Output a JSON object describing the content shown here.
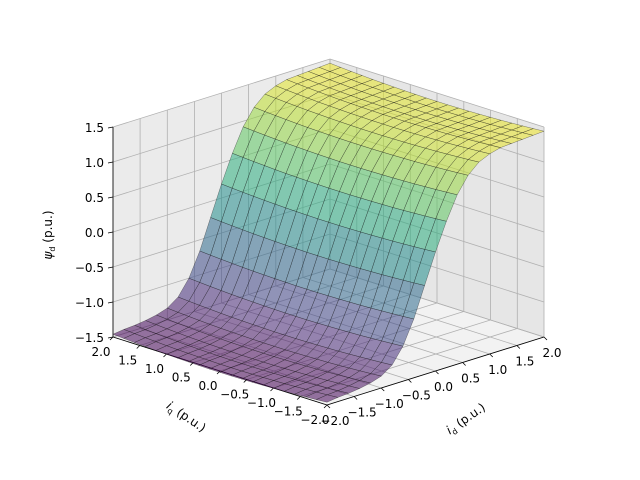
{
  "chart_data": {
    "type": "surface",
    "title": "",
    "xlabel": "i_d (p.u.)",
    "ylabel": "i_q (p.u.)",
    "zlabel": "ψ_d (p.u.)",
    "labels": {
      "x": {
        "sym": "i",
        "sub": "d",
        "unit": " (p.u.)"
      },
      "y": {
        "sym": "i",
        "sub": "q",
        "unit": " (p.u.)"
      },
      "z": {
        "sym": "ψ",
        "sub": "d",
        "unit": " (p.u.)"
      }
    },
    "xlim": [
      -2.0,
      2.0
    ],
    "ylim": [
      -2.0,
      2.0
    ],
    "zlim": [
      -1.5,
      1.5
    ],
    "x_ticks": [
      "−2.0",
      "−1.5",
      "−1.0",
      "−0.5",
      "0.0",
      "0.5",
      "1.0",
      "1.5",
      "2.0"
    ],
    "y_ticks": [
      "−2.0",
      "−1.5",
      "−1.0",
      "−0.5",
      "0.0",
      "0.5",
      "1.0",
      "1.5",
      "2.0"
    ],
    "z_ticks": [
      "−1.5",
      "−1.0",
      "−0.5",
      "0.0",
      "0.5",
      "1.0",
      "1.5"
    ],
    "x_tick_values": [
      -2.0,
      -1.5,
      -1.0,
      -0.5,
      0.0,
      0.5,
      1.0,
      1.5,
      2.0
    ],
    "y_tick_values": [
      -2.0,
      -1.5,
      -1.0,
      -0.5,
      0.0,
      0.5,
      1.0,
      1.5,
      2.0
    ],
    "z_tick_values": [
      -1.5,
      -1.0,
      -0.5,
      0.0,
      0.5,
      1.0,
      1.5
    ],
    "x": [
      -2.0,
      -1.8,
      -1.6,
      -1.4,
      -1.2,
      -1.0,
      -0.8,
      -0.6,
      -0.4,
      -0.2,
      0.0,
      0.2,
      0.4,
      0.6,
      0.8,
      1.0,
      1.2,
      1.4,
      1.6,
      1.8,
      2.0
    ],
    "y": [
      -2.0,
      -1.8,
      -1.6,
      -1.4,
      -1.2,
      -1.0,
      -0.8,
      -0.6,
      -0.4,
      -0.2,
      0.0,
      0.2,
      0.4,
      0.6,
      0.8,
      1.0,
      1.2,
      1.4,
      1.6,
      1.8,
      2.0
    ],
    "z_by_x": [
      -1.46,
      -1.44,
      -1.43,
      -1.41,
      -1.38,
      -1.33,
      -1.22,
      -1.0,
      -0.66,
      -0.23,
      0.2,
      0.59,
      0.92,
      1.15,
      1.29,
      1.36,
      1.4,
      1.41,
      1.42,
      1.43,
      1.44
    ],
    "q_sag": 0.06,
    "colormap": "viridis",
    "surface_alpha": 0.55,
    "grid": true,
    "view": {
      "elev": 15,
      "azim": -135
    }
  }
}
